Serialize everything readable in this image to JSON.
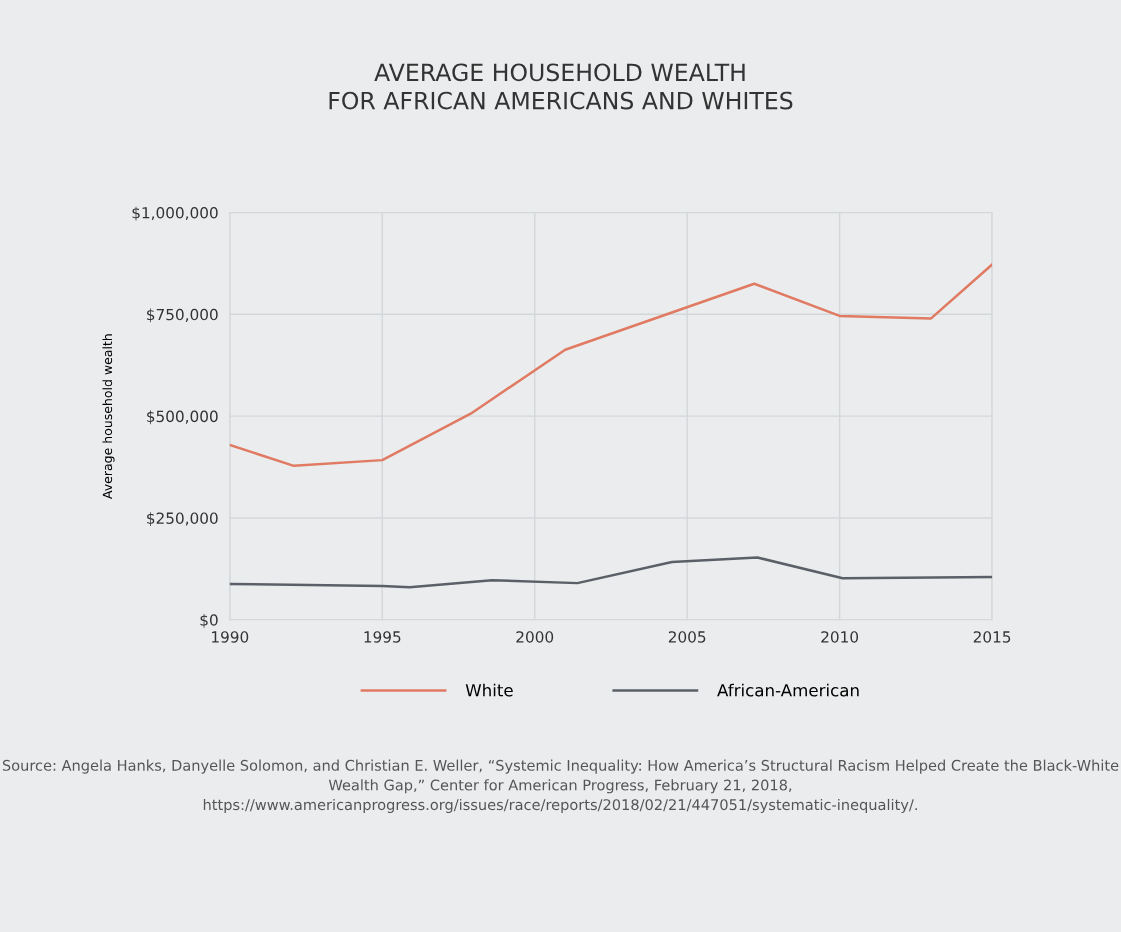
{
  "chart_data": {
    "type": "line",
    "title": "AVERAGE HOUSEHOLD WEALTH\nFOR AFRICAN AMERICANS AND WHITES",
    "ylabel": "Average household wealth",
    "series": [
      {
        "name": "White",
        "color": "#e07a62",
        "x": [
          1990,
          1992.1,
          1995,
          1997.9,
          2001,
          2007.2,
          2010,
          2013,
          2015
        ],
        "values": [
          429000,
          378000,
          392000,
          506000,
          663000,
          825000,
          746000,
          740000,
          872000
        ]
      },
      {
        "name": "African-American",
        "color": "#5b6068",
        "x": [
          1990,
          1995,
          1995.9,
          1998.6,
          2001.4,
          2004.5,
          2007.3,
          2010.1,
          2015
        ],
        "values": [
          88000,
          83000,
          80000,
          97000,
          90000,
          142000,
          153000,
          102000,
          105000
        ]
      }
    ],
    "xlim": [
      1990,
      2015
    ],
    "xticks": [
      1990,
      1995,
      2000,
      2005,
      2010,
      2015
    ],
    "ylim": [
      0,
      1000000
    ],
    "yticks": [
      {
        "value": 0,
        "label": "$0"
      },
      {
        "value": 250000,
        "label": "$250,000"
      },
      {
        "value": 500000,
        "label": "$500,000"
      },
      {
        "value": 750000,
        "label": "$750,000"
      },
      {
        "value": 1000000,
        "label": "$1,000,000"
      }
    ],
    "grid": true,
    "legend": "bottom",
    "marker": "none",
    "line_style": "solid",
    "annotations": [
      "Source: Angela Hanks, Danyelle Solomon, and Christian E. Weller, “Systemic Inequality: How America’s Structural Racism Helped Create the Black-White Wealth Gap,” Center for American Progress, February 21, 2018, https://www.americanprogress.org/issues/race/reports/2018/02/21/447051/systematic-inequality/."
    ]
  }
}
